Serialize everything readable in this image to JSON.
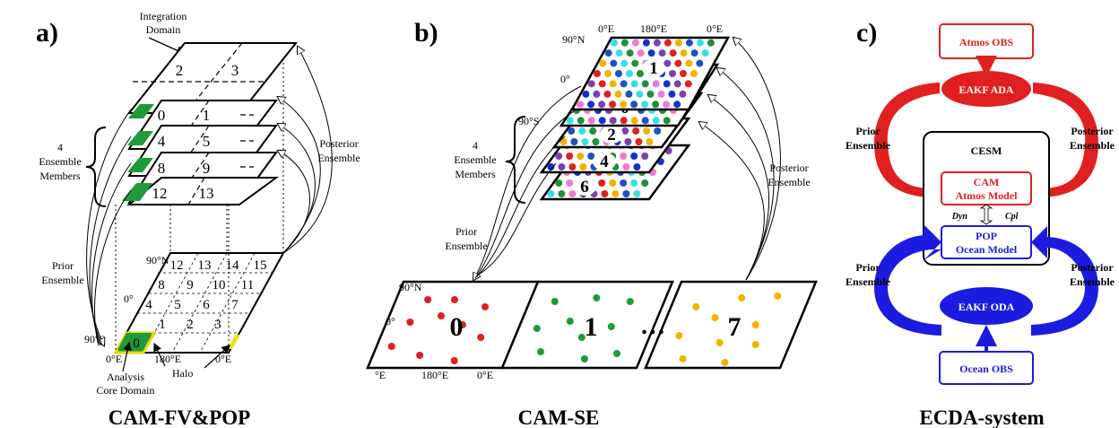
{
  "panel_labels": {
    "a": "a)",
    "b": "b)",
    "c": "c)"
  },
  "captions": {
    "a": "CAM-FV&POP",
    "b": "CAM-SE",
    "c": "ECDA-system"
  },
  "panel_a": {
    "integration_domain": [
      "Integration",
      "Domain"
    ],
    "ensemble_members": [
      "4",
      "Ensemble",
      "Members"
    ],
    "prior_ensemble": [
      "Prior",
      "Ensemble"
    ],
    "posterior_ensemble": [
      "Posterior",
      "Ensemble"
    ],
    "layer_cells": [
      [
        "2",
        "3"
      ],
      [
        "0",
        "1"
      ],
      [
        "4",
        "5"
      ],
      [
        "8",
        "9"
      ],
      [
        "12",
        "13"
      ]
    ],
    "grid_cells": [
      [
        "12",
        "13",
        "14",
        "15"
      ],
      [
        "8",
        "9",
        "10",
        "11"
      ],
      [
        "4",
        "5",
        "6",
        "7"
      ],
      [
        "0",
        "1",
        "2",
        "3"
      ]
    ],
    "lat_labels": [
      "90°N",
      "0°",
      "90°S"
    ],
    "lon_labels": [
      "0°E",
      "180°E",
      "0°E"
    ],
    "analysis_core_domain": [
      "Analysis",
      "Core Domain"
    ],
    "halo": "Halo"
  },
  "panel_b": {
    "top_lon_labels": [
      "0°E",
      "180°E",
      "0°E"
    ],
    "lat_labels": [
      "90°N",
      "0°",
      "90°S"
    ],
    "layer_numbers": [
      "1",
      "0",
      "2",
      "4",
      "6"
    ],
    "ensemble_members": [
      "4",
      "Ensemble",
      "Members"
    ],
    "prior_ensemble": [
      "Prior",
      "Ensemble"
    ],
    "posterior_ensemble": [
      "Posterior",
      "Ensemble"
    ],
    "bottom_lat_labels": [
      "90°N",
      "0°"
    ],
    "bottom_lon_labels": [
      "°E",
      "180°E",
      "0°E"
    ],
    "bottom_numbers": [
      "0",
      "1",
      "7"
    ],
    "ellipsis": "…",
    "dot_colors": [
      "#7b3fb0",
      "#1f8f3a",
      "#f0b400",
      "#1530d0",
      "#36e0e8",
      "#e02020",
      "#f07ad0",
      "#2050c0"
    ]
  },
  "panel_c": {
    "atmos_obs": "Atmos OBS",
    "eakf_ada": "EAKF ADA",
    "cesm": "CESM",
    "cam": [
      "CAM",
      "Atmos Model"
    ],
    "dyn": "Dyn",
    "cpl": "Cpl",
    "pop": [
      "POP",
      "Ocean Model"
    ],
    "eakf_oda": "EAKF ODA",
    "ocean_obs": "Ocean OBS",
    "prior_ensemble": [
      "Prior",
      "Ensemble"
    ],
    "posterior_ensemble": [
      "Posterior",
      "Ensemble"
    ],
    "colors": {
      "atmos": "#e02020",
      "ocean": "#1c1ce0"
    }
  }
}
